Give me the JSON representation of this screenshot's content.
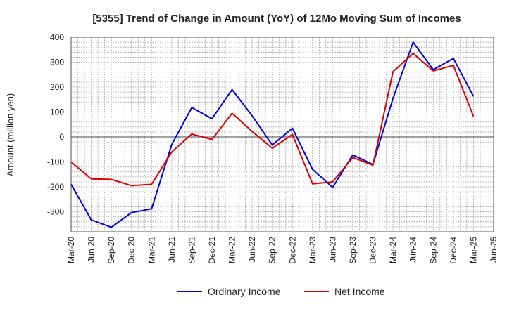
{
  "chart_data": {
    "type": "line",
    "title": "[5355]  Trend of Change in Amount (YoY) of 12Mo Moving Sum of Incomes",
    "xlabel": "",
    "ylabel": "Amount (million yen)",
    "ylim": [
      -380,
      400
    ],
    "yticks": [
      400,
      300,
      200,
      100,
      0,
      -100,
      -200,
      -300
    ],
    "grid": true,
    "legend_position": "bottom",
    "categories": [
      "Mar-20",
      "Jun-20",
      "Sep-20",
      "Dec-20",
      "Mar-21",
      "Jun-21",
      "Sep-21",
      "Dec-21",
      "Mar-22",
      "Jun-22",
      "Sep-22",
      "Dec-22",
      "Mar-23",
      "Jun-23",
      "Sep-23",
      "Dec-23",
      "Mar-24",
      "Jun-24",
      "Sep-24",
      "Dec-24",
      "Mar-25",
      "Jun-25"
    ],
    "series": [
      {
        "name": "Ordinary Income",
        "color": "#0000dd",
        "values": [
          -190,
          -332,
          -362,
          -303,
          -288,
          -30,
          118,
          73,
          190,
          85,
          -32,
          35,
          -130,
          -202,
          -72,
          -110,
          155,
          380,
          270,
          315,
          163,
          null
        ]
      },
      {
        "name": "Net Income",
        "color": "#dd0000",
        "values": [
          -100,
          -168,
          -170,
          -195,
          -190,
          -60,
          12,
          -10,
          95,
          22,
          -45,
          10,
          -188,
          -180,
          -82,
          -113,
          262,
          335,
          265,
          287,
          83,
          null
        ]
      }
    ]
  }
}
